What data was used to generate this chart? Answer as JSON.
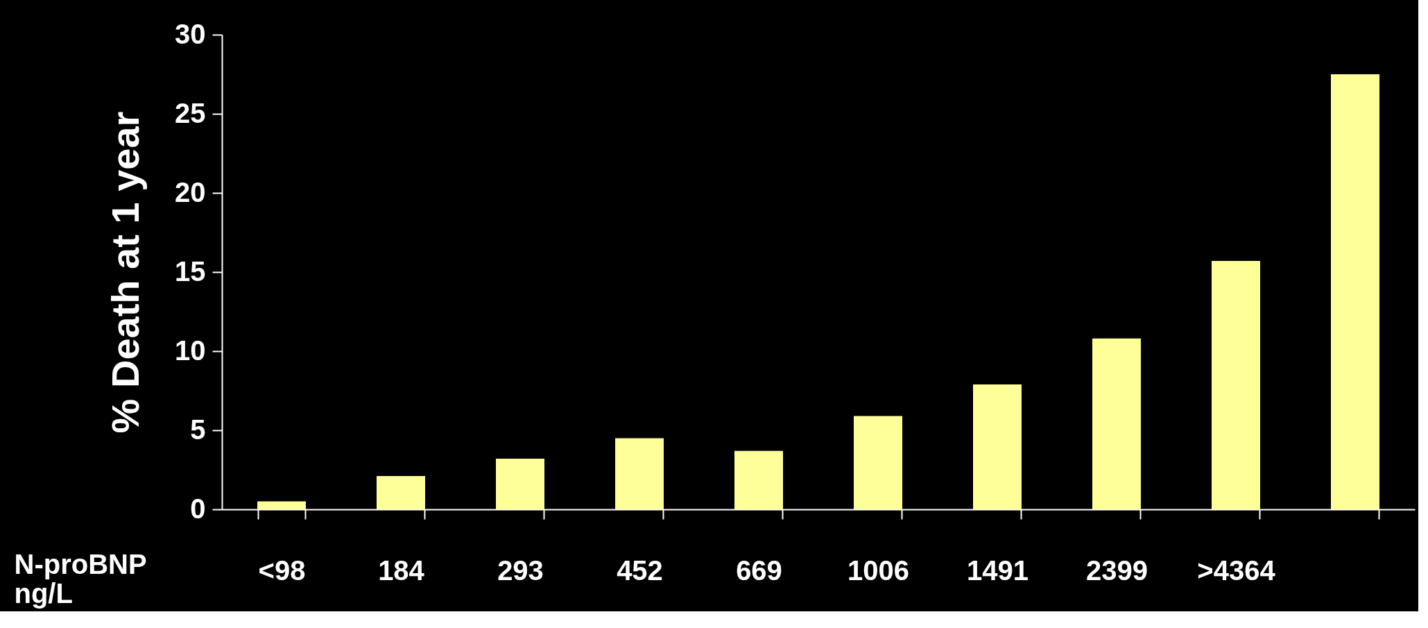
{
  "chart_data": {
    "type": "bar",
    "ylabel": "% Death at 1 year",
    "xlabel": "N-proBNP ng/L",
    "categories": [
      "<98",
      "184",
      "293",
      "452",
      "669",
      "1006",
      "1491",
      "2399",
      ">4364",
      null
    ],
    "values": [
      0.5,
      2.1,
      3.2,
      4.5,
      3.7,
      5.9,
      7.9,
      10.8,
      15.7,
      27.5
    ],
    "color": "#ffff99",
    "ylim": [
      0,
      30
    ],
    "yticks": [
      0,
      5,
      10,
      15,
      20,
      25,
      30
    ],
    "grid": false
  }
}
